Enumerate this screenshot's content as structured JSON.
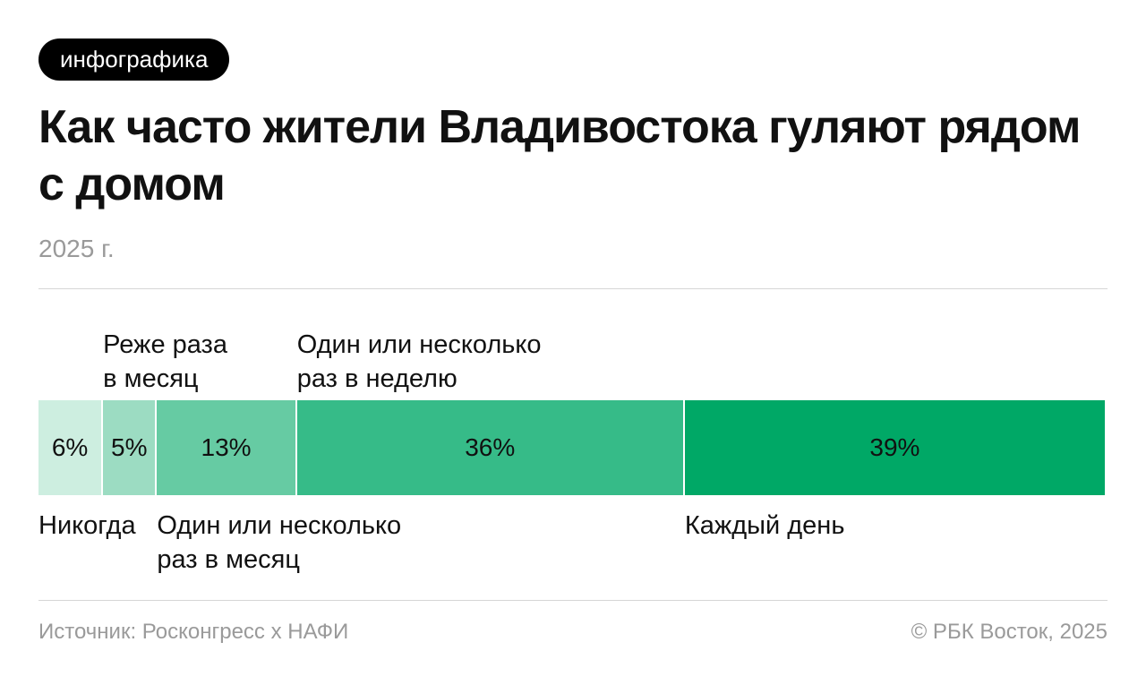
{
  "badge": "инфографика",
  "title": "Как часто жители Владивостока гуляют рядом с домом",
  "subtitle": "2025 г.",
  "footer": {
    "source": "Источник: Росконгресс х НАФИ",
    "copyright": "© РБК Восток, 2025"
  },
  "chart_data": {
    "type": "bar",
    "stacked": true,
    "orientation": "horizontal",
    "unit": "%",
    "categories": [
      "Никогда",
      "Реже раза\nв месяц",
      "Один или несколько\nраз в месяц",
      "Один или несколько\nраз в неделю",
      "Каждый день"
    ],
    "values": [
      6,
      5,
      13,
      36,
      39
    ],
    "value_labels": [
      "6%",
      "5%",
      "13%",
      "36%",
      "39%"
    ],
    "label_positions": [
      "below",
      "above",
      "below",
      "above",
      "below"
    ],
    "colors": [
      "#cdeee0",
      "#9cdcc2",
      "#66cba3",
      "#36bb88",
      "#00a866"
    ]
  }
}
